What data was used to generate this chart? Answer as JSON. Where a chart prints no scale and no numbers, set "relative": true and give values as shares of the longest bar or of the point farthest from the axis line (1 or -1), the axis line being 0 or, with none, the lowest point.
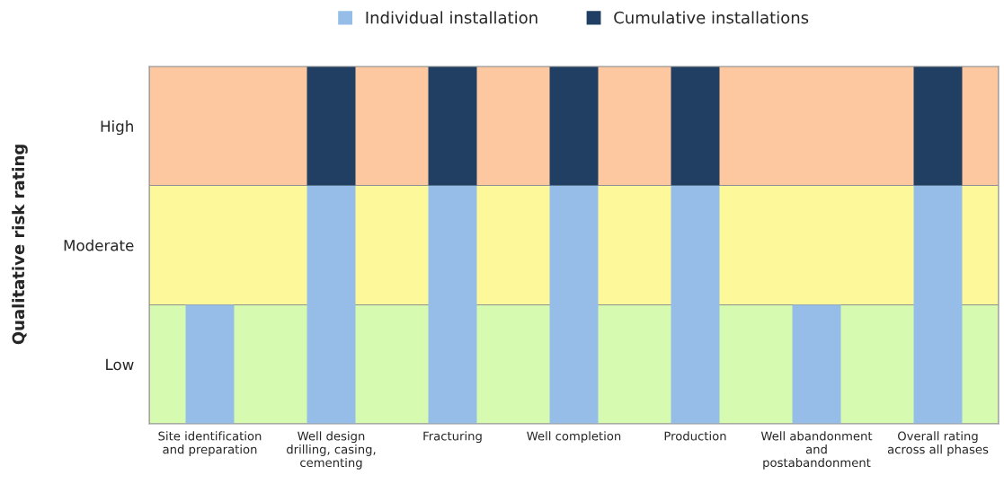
{
  "chart_data": {
    "type": "bar",
    "stacked": true,
    "relative": true,
    "categories": [
      "Site identification\nand preparation",
      "Well design\ndrilling, casing,\ncementing",
      "Fracturing",
      "Well completion",
      "Production",
      "Well abandonment\nand\npostabandonment",
      "Overall rating\nacross all phases"
    ],
    "series": [
      {
        "name": "Individual installation",
        "color": "#95bde8",
        "values": [
          0.333,
          0.667,
          0.667,
          0.667,
          0.667,
          0.333,
          0.667
        ]
      },
      {
        "name": "Cumulative installations",
        "color": "#203f63",
        "values": [
          0,
          0.333,
          0.333,
          0.333,
          0.333,
          0,
          0.333
        ]
      }
    ],
    "annotations": [
      "High",
      "Moderate",
      "Low",
      "Qualitative risk rating"
    ],
    "bands": [
      {
        "axis": "y",
        "from": 0,
        "to": 0.333,
        "color": "#d6fbb0"
      },
      {
        "axis": "y",
        "from": 0.333,
        "to": 0.667,
        "color": "#fdf89a"
      },
      {
        "axis": "y",
        "from": 0.667,
        "to": 1,
        "color": "#fdc8a0"
      }
    ],
    "grid": false,
    "legend": "top"
  }
}
